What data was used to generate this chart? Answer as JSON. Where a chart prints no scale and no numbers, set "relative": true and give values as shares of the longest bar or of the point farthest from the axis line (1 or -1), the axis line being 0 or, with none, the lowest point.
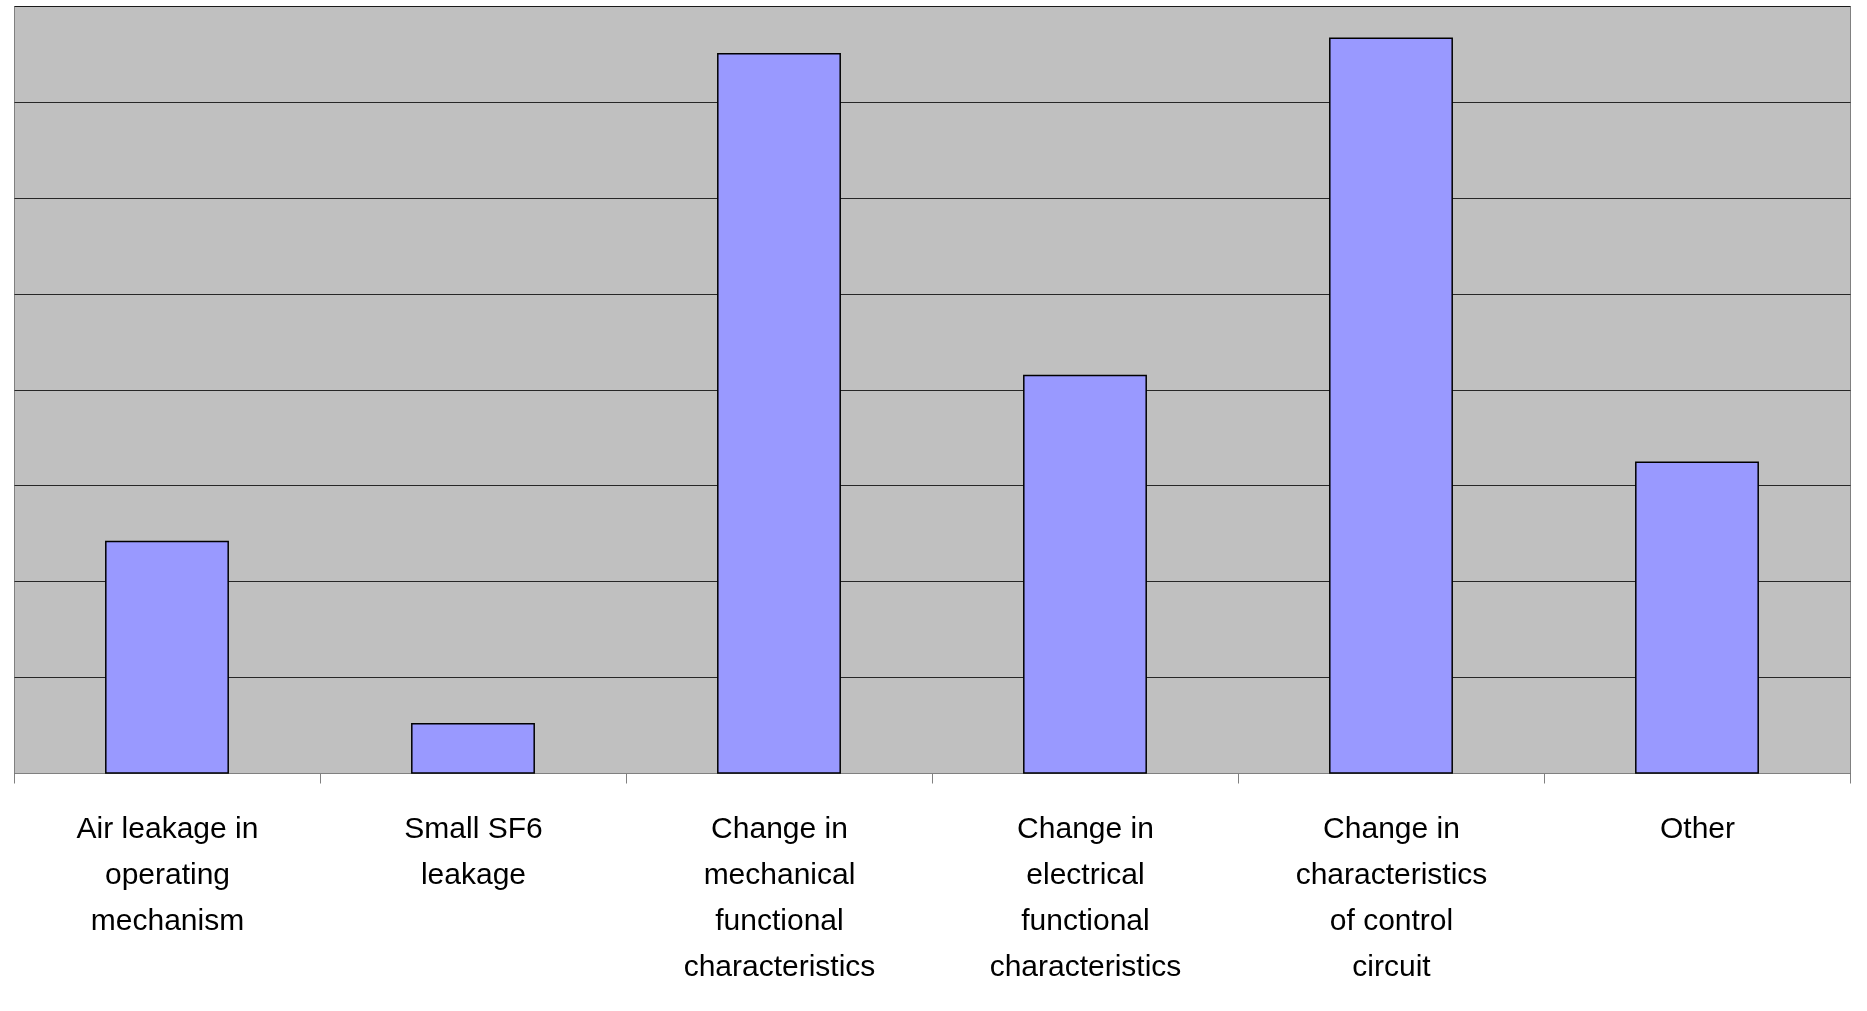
{
  "chart_data": {
    "type": "bar",
    "relative": true,
    "grid": "y",
    "color": "#9999ff",
    "categories": [
      "Air leakage in operating mechanism",
      "Small SF6 leakage",
      "Change in mechanical functional characteristics",
      "Change in electrical functional characteristics",
      "Change in characteristics of control circuit",
      "Other"
    ],
    "values": [
      0.315,
      0.067,
      0.979,
      0.541,
      1.0,
      0.423
    ]
  }
}
